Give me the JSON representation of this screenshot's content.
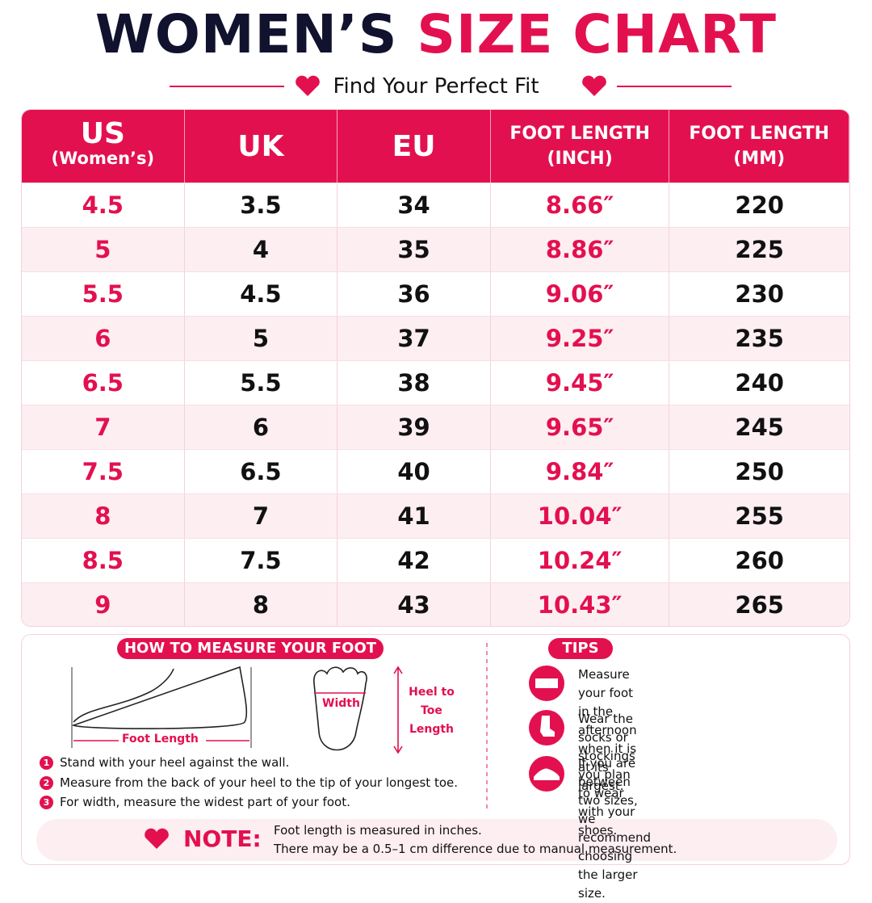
{
  "header": {
    "title_dark": "WOMEN’S",
    "title_accent": "SIZE CHART",
    "subtitle": "Find Your Perfect Fit"
  },
  "table": {
    "headers": [
      [
        "US",
        "(Women’s)"
      ],
      [
        "UK"
      ],
      [
        "EU"
      ],
      [
        "FOOT LENGTH",
        "(INCH)"
      ],
      [
        "FOOT LENGTH",
        "(MM)"
      ]
    ],
    "rows": [
      [
        "4.5",
        "3.5",
        "34",
        "8.66″",
        "220"
      ],
      [
        "5",
        "4",
        "35",
        "8.86″",
        "225"
      ],
      [
        "5.5",
        "4.5",
        "36",
        "9.06″",
        "230"
      ],
      [
        "6",
        "5",
        "37",
        "9.25″",
        "235"
      ],
      [
        "6.5",
        "5.5",
        "38",
        "9.45″",
        "240"
      ],
      [
        "7",
        "6",
        "39",
        "9.65″",
        "245"
      ],
      [
        "7.5",
        "6.5",
        "40",
        "9.84″",
        "250"
      ],
      [
        "8",
        "7",
        "41",
        "10.04″",
        "255"
      ],
      [
        "8.5",
        "7.5",
        "42",
        "10.24″",
        "260"
      ],
      [
        "9",
        "8",
        "43",
        "10.43″",
        "265"
      ]
    ]
  },
  "measure": {
    "title": "HOW TO MEASURE YOUR FOOT",
    "foot_length": "Foot Length",
    "width": "Width",
    "heel_to_toe": [
      "Heel to",
      "Toe",
      "Length"
    ],
    "steps": [
      {
        "n": "1",
        "text": "Stand with your heel against the wall."
      },
      {
        "n": "2",
        "text": "Measure from the back of your heel to the tip of your longest toe."
      },
      {
        "n": "3",
        "text": "For width, measure the widest part of your foot."
      }
    ]
  },
  "tips": {
    "title": "TIPS",
    "items": [
      [
        "Measure your foot in the",
        "afternoon when it is at its largest."
      ],
      [
        "Wear the socks or stockings",
        "you plan to wear with your shoes."
      ],
      [
        "If you are between two sizes,",
        "we recommend choosing",
        "the larger size."
      ]
    ]
  },
  "note": {
    "label": "NOTE:",
    "lines": [
      "Foot length is measured in inches.",
      "There may be a 0.5–1 cm difference due to manual measurement."
    ]
  }
}
